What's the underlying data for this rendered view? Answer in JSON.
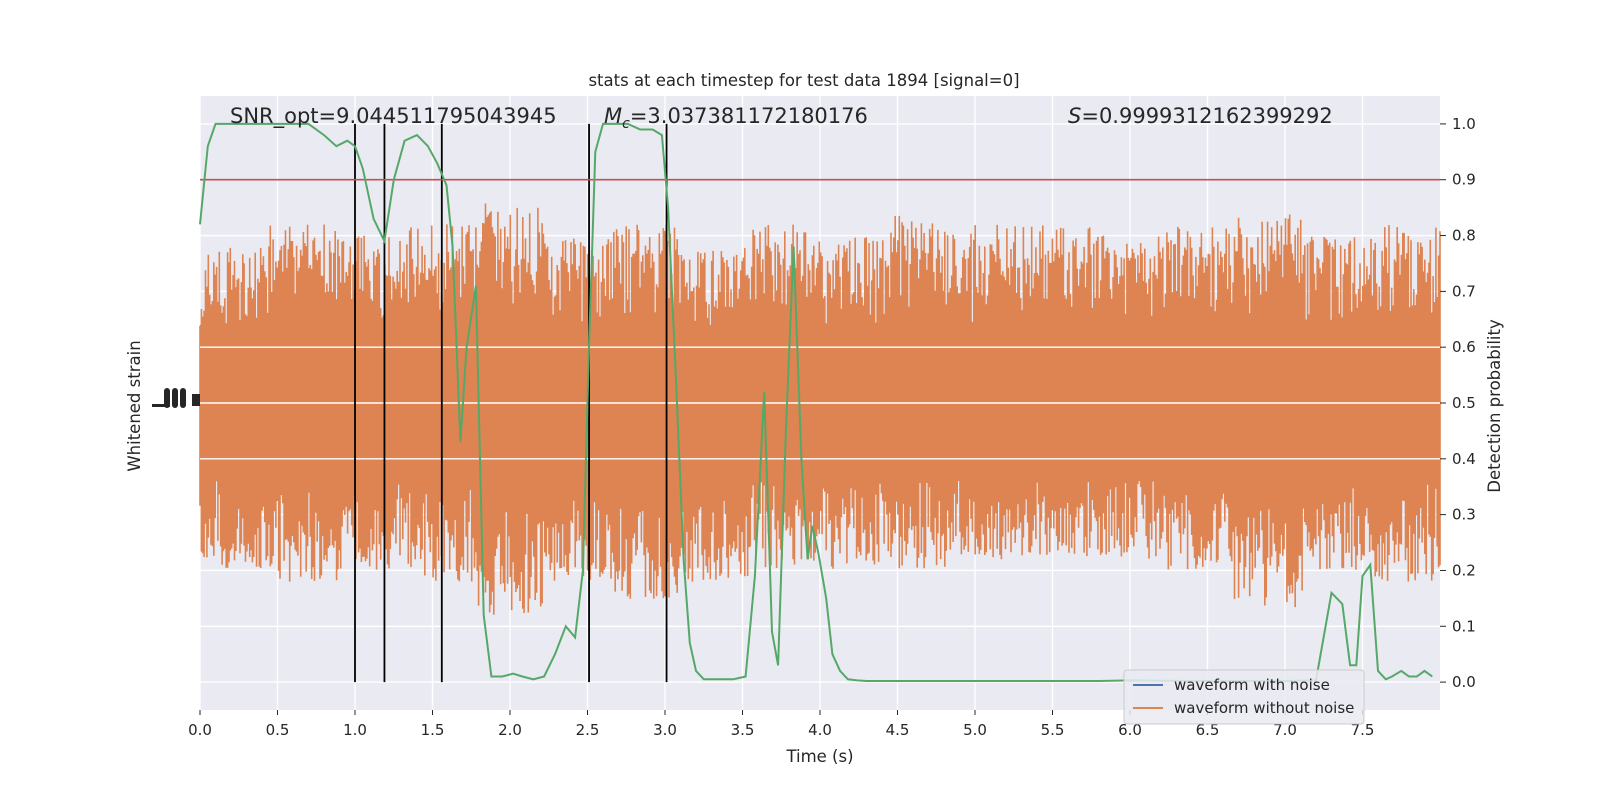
{
  "chart_data": {
    "type": "line",
    "title": "stats at each timestep for test data 1894 [signal=0]",
    "xlabel": "Time (s)",
    "ylabel_left": "Whitened strain",
    "ylabel_right": "Detection probability",
    "xlim": [
      0.0,
      8.0
    ],
    "ylim_right": [
      -0.05,
      1.05
    ],
    "x_ticks": [
      0.0,
      0.5,
      1.0,
      1.5,
      2.0,
      2.5,
      3.0,
      3.5,
      4.0,
      4.5,
      5.0,
      5.5,
      6.0,
      6.5,
      7.0,
      7.5
    ],
    "x_tick_labels": [
      "0.0",
      "0.5",
      "1.0",
      "1.5",
      "2.0",
      "2.5",
      "3.0",
      "3.5",
      "4.0",
      "4.5",
      "5.0",
      "5.5",
      "6.0",
      "6.5",
      "7.0",
      "7.5"
    ],
    "y_ticks_right": [
      0.0,
      0.1,
      0.2,
      0.3,
      0.4,
      0.5,
      0.6,
      0.7,
      0.8,
      0.9,
      1.0
    ],
    "y_tick_labels_right": [
      "0.0",
      "0.1",
      "0.2",
      "0.3",
      "0.4",
      "0.5",
      "0.6",
      "0.7",
      "0.8",
      "0.9",
      "1.0"
    ],
    "grid": true,
    "legend_position": "lower-right",
    "stats": {
      "snr": "SNR_opt=9.044511795043945",
      "mc_symbol": "M",
      "mc_sub": "c",
      "mc_value": "=3.037381172180176",
      "s_symbol": "S",
      "s_value": "=0.9999312162399292"
    },
    "threshold": 0.9,
    "vertical_lines_x": [
      1.0,
      1.19,
      1.56,
      2.51,
      3.01
    ],
    "series": [
      {
        "name": "waveform with noise",
        "color": "#4c72b0",
        "values": []
      },
      {
        "name": "waveform without noise",
        "color": "#dd8452",
        "envelope_upper": [
          0.78,
          0.82,
          0.8,
          0.82,
          0.86,
          0.8,
          0.82,
          0.78,
          0.82,
          0.8,
          0.84,
          0.82,
          0.82,
          0.8,
          0.82,
          0.84,
          0.8,
          0.82
        ],
        "envelope_lower": [
          0.2,
          0.18,
          0.2,
          0.18,
          0.12,
          0.18,
          0.14,
          0.18,
          0.2,
          0.2,
          0.2,
          0.22,
          0.22,
          0.22,
          0.2,
          0.12,
          0.2,
          0.18
        ]
      },
      {
        "name": "detection probability",
        "color": "#55a868",
        "x": [
          0.0,
          0.05,
          0.1,
          0.15,
          0.2,
          0.3,
          0.4,
          0.5,
          0.6,
          0.7,
          0.8,
          0.88,
          0.95,
          1.0,
          1.05,
          1.12,
          1.19,
          1.25,
          1.32,
          1.4,
          1.47,
          1.53,
          1.59,
          1.63,
          1.68,
          1.72,
          1.78,
          1.83,
          1.88,
          1.95,
          2.02,
          2.08,
          2.15,
          2.22,
          2.29,
          2.36,
          2.42,
          2.47,
          2.51,
          2.55,
          2.6,
          2.68,
          2.76,
          2.84,
          2.92,
          2.98,
          3.02,
          3.07,
          3.12,
          3.16,
          3.2,
          3.25,
          3.3,
          3.36,
          3.44,
          3.52,
          3.58,
          3.64,
          3.69,
          3.73,
          3.78,
          3.83,
          3.88,
          3.92,
          3.95,
          3.99,
          4.04,
          4.08,
          4.13,
          4.18,
          4.24,
          4.3,
          4.38,
          4.48,
          4.6,
          4.8,
          5.0,
          5.2,
          5.4,
          5.6,
          5.8,
          6.0,
          6.4,
          6.8,
          7.0,
          7.2,
          7.3,
          7.37,
          7.42,
          7.46,
          7.5,
          7.55,
          7.6,
          7.65,
          7.69,
          7.75,
          7.8,
          7.85,
          7.9,
          7.95
        ],
        "y": [
          0.82,
          0.96,
          1.0,
          1.0,
          1.0,
          1.0,
          1.0,
          1.0,
          1.0,
          1.0,
          0.98,
          0.96,
          0.97,
          0.96,
          0.92,
          0.83,
          0.79,
          0.9,
          0.97,
          0.98,
          0.96,
          0.93,
          0.89,
          0.78,
          0.43,
          0.6,
          0.71,
          0.12,
          0.01,
          0.01,
          0.015,
          0.01,
          0.005,
          0.01,
          0.05,
          0.1,
          0.08,
          0.2,
          0.6,
          0.95,
          1.0,
          1.0,
          1.0,
          0.99,
          0.99,
          0.98,
          0.85,
          0.55,
          0.22,
          0.07,
          0.02,
          0.005,
          0.005,
          0.005,
          0.005,
          0.01,
          0.19,
          0.52,
          0.09,
          0.03,
          0.45,
          0.78,
          0.4,
          0.22,
          0.28,
          0.23,
          0.15,
          0.05,
          0.02,
          0.005,
          0.003,
          0.002,
          0.002,
          0.002,
          0.002,
          0.002,
          0.002,
          0.002,
          0.002,
          0.002,
          0.002,
          0.003,
          0.002,
          0.002,
          0.002,
          0.003,
          0.16,
          0.14,
          0.03,
          0.03,
          0.19,
          0.21,
          0.02,
          0.005,
          0.01,
          0.02,
          0.01,
          0.01,
          0.02,
          0.01
        ]
      }
    ]
  }
}
